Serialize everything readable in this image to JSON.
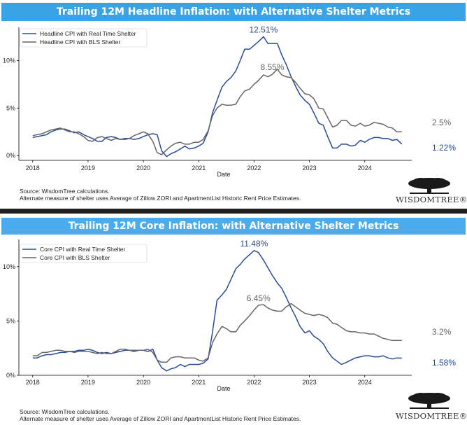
{
  "footer": {
    "source": "Source: WisdomTree calculations.",
    "note": "Alternate measure of shelter uses Average of Zillow ZORI and ApartmentList Historic Rent Price Estimates.",
    "logo": "WISDOMTREE®"
  },
  "chart_data": [
    {
      "type": "line",
      "title": "Trailing 12M Headline Inflation: with Alternative Shelter Metrics",
      "xlabel": "Date",
      "ylabel": "",
      "x_ticks": [
        "2018",
        "2019",
        "2020",
        "2021",
        "2022",
        "2023",
        "2024"
      ],
      "y_ticks": [
        "0%",
        "5%",
        "10%"
      ],
      "xlim": [
        2017.75,
        2024.85
      ],
      "ylim": [
        -0.5,
        13.5
      ],
      "legend_position": "top-left",
      "grid": false,
      "series": [
        {
          "name": "Headline CPI with Real Time Shelter",
          "color": "#2a4b9b",
          "x": [
            2018.0,
            2018.08,
            2018.17,
            2018.25,
            2018.33,
            2018.42,
            2018.5,
            2018.58,
            2018.67,
            2018.75,
            2018.83,
            2018.92,
            2019.0,
            2019.08,
            2019.17,
            2019.25,
            2019.33,
            2019.42,
            2019.5,
            2019.58,
            2019.67,
            2019.75,
            2019.83,
            2019.92,
            2020.0,
            2020.08,
            2020.17,
            2020.25,
            2020.33,
            2020.42,
            2020.5,
            2020.58,
            2020.67,
            2020.75,
            2020.83,
            2020.92,
            2021.0,
            2021.08,
            2021.17,
            2021.25,
            2021.33,
            2021.42,
            2021.5,
            2021.58,
            2021.67,
            2021.75,
            2021.83,
            2021.92,
            2022.0,
            2022.08,
            2022.17,
            2022.25,
            2022.33,
            2022.42,
            2022.5,
            2022.58,
            2022.67,
            2022.75,
            2022.83,
            2022.92,
            2023.0,
            2023.08,
            2023.17,
            2023.25,
            2023.33,
            2023.42,
            2023.5,
            2023.58,
            2023.67,
            2023.75,
            2023.83,
            2023.92,
            2024.0,
            2024.08,
            2024.17,
            2024.25,
            2024.33,
            2024.42,
            2024.5,
            2024.58,
            2024.67
          ],
          "values": [
            1.9,
            2.0,
            2.1,
            2.2,
            2.5,
            2.7,
            2.8,
            2.8,
            2.6,
            2.4,
            2.5,
            2.2,
            2.0,
            1.8,
            1.5,
            1.5,
            1.9,
            2.0,
            1.9,
            1.7,
            1.8,
            1.8,
            1.7,
            1.8,
            2.0,
            2.2,
            2.3,
            2.2,
            0.5,
            -0.1,
            0.2,
            0.4,
            0.7,
            1.0,
            0.7,
            0.8,
            1.0,
            1.3,
            2.5,
            4.5,
            5.8,
            7.2,
            7.8,
            8.2,
            8.9,
            10.0,
            11.2,
            11.2,
            11.6,
            12.0,
            12.51,
            11.8,
            11.8,
            11.8,
            10.6,
            9.6,
            8.3,
            7.3,
            6.4,
            5.8,
            5.4,
            4.5,
            3.4,
            3.2,
            2.0,
            0.8,
            0.8,
            1.2,
            1.2,
            1.0,
            1.1,
            1.6,
            1.4,
            1.7,
            1.9,
            1.9,
            1.8,
            1.8,
            1.6,
            1.7,
            1.22
          ]
        },
        {
          "name": "Headline CPI with BLS Shelter",
          "color": "#666666",
          "x": [
            2018.0,
            2018.08,
            2018.17,
            2018.25,
            2018.33,
            2018.42,
            2018.5,
            2018.58,
            2018.67,
            2018.75,
            2018.83,
            2018.92,
            2019.0,
            2019.08,
            2019.17,
            2019.25,
            2019.33,
            2019.42,
            2019.5,
            2019.58,
            2019.67,
            2019.75,
            2019.83,
            2019.92,
            2020.0,
            2020.08,
            2020.17,
            2020.25,
            2020.33,
            2020.42,
            2020.5,
            2020.58,
            2020.67,
            2020.75,
            2020.83,
            2020.92,
            2021.0,
            2021.08,
            2021.17,
            2021.25,
            2021.33,
            2021.42,
            2021.5,
            2021.58,
            2021.67,
            2021.75,
            2021.83,
            2021.92,
            2022.0,
            2022.08,
            2022.17,
            2022.25,
            2022.33,
            2022.42,
            2022.5,
            2022.58,
            2022.67,
            2022.75,
            2022.83,
            2022.92,
            2023.0,
            2023.08,
            2023.17,
            2023.25,
            2023.33,
            2023.42,
            2023.5,
            2023.58,
            2023.67,
            2023.75,
            2023.83,
            2023.92,
            2024.0,
            2024.08,
            2024.17,
            2024.25,
            2024.33,
            2024.42,
            2024.5,
            2024.58,
            2024.67
          ],
          "values": [
            2.1,
            2.2,
            2.3,
            2.5,
            2.7,
            2.8,
            2.9,
            2.7,
            2.5,
            2.5,
            2.3,
            2.0,
            1.6,
            1.5,
            1.9,
            2.0,
            1.8,
            1.6,
            1.8,
            1.7,
            1.7,
            1.8,
            2.1,
            2.3,
            2.5,
            2.3,
            1.5,
            0.3,
            0.1,
            0.6,
            1.0,
            1.3,
            1.4,
            1.2,
            1.2,
            1.4,
            1.4,
            1.7,
            2.6,
            4.2,
            5.0,
            5.4,
            5.3,
            5.3,
            5.4,
            6.2,
            6.8,
            7.0,
            7.5,
            7.9,
            8.5,
            8.3,
            8.55,
            9.1,
            8.5,
            8.3,
            8.2,
            7.7,
            7.1,
            6.5,
            6.4,
            6.0,
            5.0,
            4.9,
            4.0,
            3.0,
            3.2,
            3.7,
            3.7,
            3.2,
            3.1,
            3.4,
            3.1,
            3.2,
            3.5,
            3.4,
            3.3,
            3.0,
            2.9,
            2.5,
            2.5
          ]
        }
      ],
      "annotations": [
        {
          "text": "12.51%",
          "x": 2022.17,
          "y": 12.51,
          "color": "#2a4b9b"
        },
        {
          "text": "8.55%",
          "x": 2022.33,
          "y": 8.55,
          "color": "#666666"
        },
        {
          "text": "2.5%",
          "series": 1,
          "color": "#666666"
        },
        {
          "text": "1.22%",
          "series": 0,
          "color": "#2a4b9b"
        }
      ]
    },
    {
      "type": "line",
      "title": "Trailing 12M Core Inflation: with Alternative Shelter Metrics",
      "xlabel": "Date",
      "ylabel": "",
      "x_ticks": [
        "2018",
        "2019",
        "2020",
        "2021",
        "2022",
        "2023",
        "2024"
      ],
      "y_ticks": [
        "0%",
        "5%",
        "10%"
      ],
      "xlim": [
        2017.75,
        2024.85
      ],
      "ylim": [
        0,
        12.5
      ],
      "legend_position": "top-left",
      "grid": false,
      "series": [
        {
          "name": "Core CPI with Real Time Shelter",
          "color": "#2a4b9b",
          "x": [
            2018.0,
            2018.08,
            2018.17,
            2018.25,
            2018.33,
            2018.42,
            2018.5,
            2018.58,
            2018.67,
            2018.75,
            2018.83,
            2018.92,
            2019.0,
            2019.08,
            2019.17,
            2019.25,
            2019.33,
            2019.42,
            2019.5,
            2019.58,
            2019.67,
            2019.75,
            2019.83,
            2019.92,
            2020.0,
            2020.08,
            2020.17,
            2020.25,
            2020.33,
            2020.42,
            2020.5,
            2020.58,
            2020.67,
            2020.75,
            2020.83,
            2020.92,
            2021.0,
            2021.08,
            2021.17,
            2021.25,
            2021.33,
            2021.42,
            2021.5,
            2021.58,
            2021.67,
            2021.75,
            2021.83,
            2021.92,
            2022.0,
            2022.08,
            2022.17,
            2022.25,
            2022.33,
            2022.42,
            2022.5,
            2022.58,
            2022.67,
            2022.75,
            2022.83,
            2022.92,
            2023.0,
            2023.08,
            2023.17,
            2023.25,
            2023.33,
            2023.42,
            2023.5,
            2023.58,
            2023.67,
            2023.75,
            2023.83,
            2023.92,
            2024.0,
            2024.08,
            2024.17,
            2024.25,
            2024.33,
            2024.42,
            2024.5,
            2024.58,
            2024.67
          ],
          "values": [
            1.6,
            1.6,
            1.8,
            1.9,
            1.9,
            2.0,
            2.1,
            2.1,
            2.2,
            2.2,
            2.3,
            2.3,
            2.4,
            2.3,
            2.1,
            2.0,
            2.1,
            2.0,
            2.1,
            2.2,
            2.3,
            2.3,
            2.2,
            2.3,
            2.3,
            2.2,
            2.4,
            1.4,
            0.7,
            0.4,
            0.6,
            0.7,
            1.0,
            0.8,
            1.0,
            1.0,
            1.0,
            1.1,
            1.5,
            4.0,
            6.9,
            7.4,
            7.9,
            8.8,
            9.8,
            10.2,
            10.7,
            11.1,
            11.48,
            11.3,
            10.6,
            9.9,
            9.2,
            8.5,
            8.0,
            7.2,
            6.2,
            5.4,
            4.5,
            3.9,
            4.1,
            3.6,
            3.3,
            2.9,
            2.2,
            1.6,
            1.3,
            1.0,
            1.2,
            1.4,
            1.6,
            1.7,
            1.8,
            1.8,
            1.7,
            1.7,
            1.8,
            1.6,
            1.5,
            1.6,
            1.58
          ]
        },
        {
          "name": "Core CPI with BLS Shelter",
          "color": "#666666",
          "x": [
            2018.0,
            2018.08,
            2018.17,
            2018.25,
            2018.33,
            2018.42,
            2018.5,
            2018.58,
            2018.67,
            2018.75,
            2018.83,
            2018.92,
            2019.0,
            2019.08,
            2019.17,
            2019.25,
            2019.33,
            2019.42,
            2019.5,
            2019.58,
            2019.67,
            2019.75,
            2019.83,
            2019.92,
            2020.0,
            2020.08,
            2020.17,
            2020.25,
            2020.33,
            2020.42,
            2020.5,
            2020.58,
            2020.67,
            2020.75,
            2020.83,
            2020.92,
            2021.0,
            2021.08,
            2021.17,
            2021.25,
            2021.33,
            2021.42,
            2021.5,
            2021.58,
            2021.67,
            2021.75,
            2021.83,
            2021.92,
            2022.0,
            2022.08,
            2022.17,
            2022.25,
            2022.33,
            2022.42,
            2022.5,
            2022.58,
            2022.67,
            2022.75,
            2022.83,
            2022.92,
            2023.0,
            2023.08,
            2023.17,
            2023.25,
            2023.33,
            2023.42,
            2023.5,
            2023.58,
            2023.67,
            2023.75,
            2023.83,
            2023.92,
            2024.0,
            2024.08,
            2024.17,
            2024.25,
            2024.33,
            2024.42,
            2024.5,
            2024.58,
            2024.67
          ],
          "values": [
            1.8,
            1.8,
            2.1,
            2.1,
            2.2,
            2.3,
            2.3,
            2.2,
            2.2,
            2.1,
            2.2,
            2.2,
            2.2,
            2.1,
            2.0,
            2.1,
            2.0,
            2.0,
            2.2,
            2.4,
            2.4,
            2.3,
            2.3,
            2.3,
            2.3,
            2.4,
            2.1,
            1.4,
            1.2,
            1.2,
            1.6,
            1.7,
            1.7,
            1.6,
            1.6,
            1.6,
            1.4,
            1.3,
            1.6,
            3.0,
            3.8,
            4.5,
            4.3,
            4.0,
            4.0,
            4.6,
            5.0,
            5.5,
            6.0,
            6.45,
            6.5,
            6.2,
            6.0,
            5.9,
            5.9,
            6.3,
            6.6,
            6.3,
            6.0,
            5.7,
            5.6,
            5.5,
            5.6,
            5.5,
            5.3,
            4.8,
            4.7,
            4.4,
            4.1,
            4.0,
            4.0,
            3.9,
            3.9,
            3.8,
            3.8,
            3.6,
            3.4,
            3.3,
            3.2,
            3.2,
            3.2
          ]
        }
      ],
      "annotations": [
        {
          "text": "11.48%",
          "x": 2022.0,
          "y": 11.48,
          "color": "#2a4b9b"
        },
        {
          "text": "6.45%",
          "x": 2022.08,
          "y": 6.45,
          "color": "#666666"
        },
        {
          "text": "3.2%",
          "series": 1,
          "color": "#666666"
        },
        {
          "text": "1.58%",
          "series": 0,
          "color": "#2a4b9b"
        }
      ]
    }
  ]
}
